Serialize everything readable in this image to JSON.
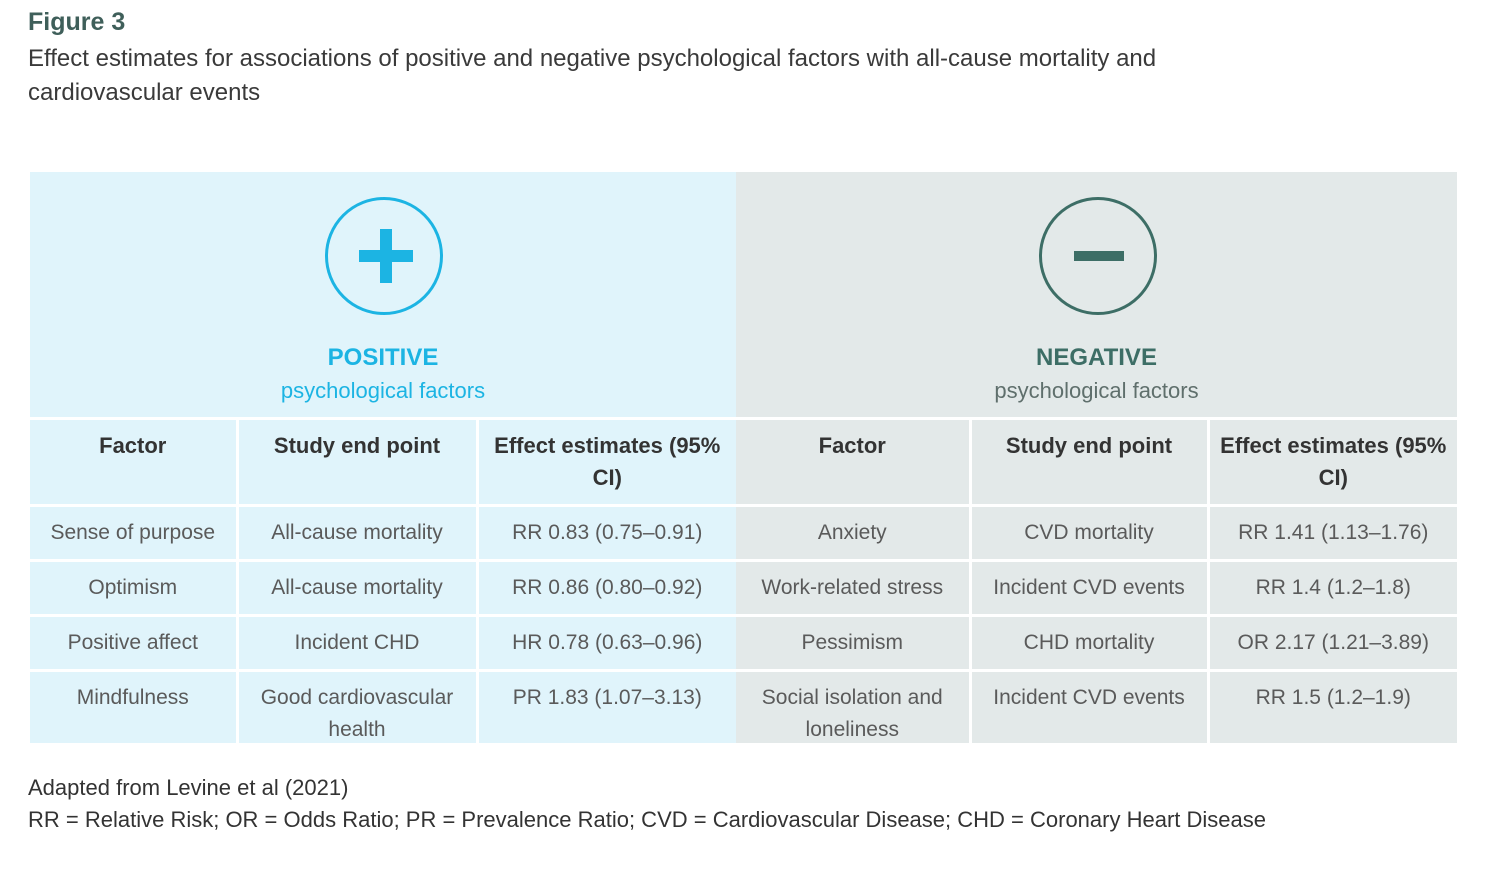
{
  "figure_label": "Figure 3",
  "title": "Effect estimates for associations of positive and negative psychological factors with all-cause mortality and cardiovascular events",
  "colors": {
    "positive_accent": "#1cb4e3",
    "positive_bg": "#e0f4fb",
    "negative_accent": "#3d6e66",
    "negative_bg": "#e3e9e9"
  },
  "positive": {
    "icon": "plus-circle-icon",
    "title": "POSITIVE",
    "subtitle": "psychological factors",
    "columns": [
      "Factor",
      "Study end point",
      "Effect estimates (95% CI)"
    ],
    "rows": [
      [
        "Sense of purpose",
        "All-cause mortality",
        "RR 0.83 (0.75–0.91)"
      ],
      [
        "Optimism",
        "All-cause mortality",
        "RR 0.86 (0.80–0.92)"
      ],
      [
        "Positive affect",
        "Incident CHD",
        "HR 0.78 (0.63–0.96)"
      ],
      [
        "Mindfulness",
        "Good cardiovascular health",
        "PR 1.83 (1.07–3.13)"
      ]
    ]
  },
  "negative": {
    "icon": "minus-circle-icon",
    "title": "NEGATIVE",
    "subtitle": "psychological factors",
    "columns": [
      "Factor",
      "Study end point",
      "Effect estimates (95% CI)"
    ],
    "rows": [
      [
        "Anxiety",
        "CVD mortality",
        "RR 1.41 (1.13–1.76)"
      ],
      [
        "Work-related stress",
        "Incident CVD events",
        "RR 1.4 (1.2–1.8)"
      ],
      [
        "Pessimism",
        "CHD mortality",
        "OR 2.17 (1.21–3.89)"
      ],
      [
        "Social isolation and loneliness",
        "Incident CVD events",
        "RR 1.5 (1.2–1.9)"
      ]
    ]
  },
  "source": "Adapted from Levine et al (2021)",
  "abbreviations": "RR = Relative Risk; OR = Odds Ratio;  PR = Prevalence Ratio;  CVD = Cardiovascular Disease;  CHD = Coronary Heart Disease"
}
